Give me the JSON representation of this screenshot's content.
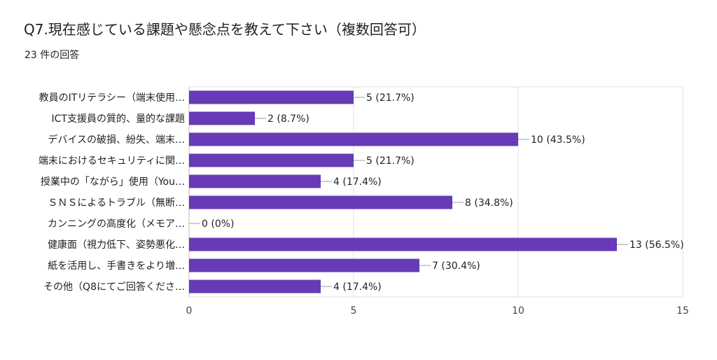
{
  "chart_data": {
    "type": "bar",
    "orientation": "horizontal",
    "title": "Q7.現在感じている課題や懸念点を教えて下さい（複数回答可）",
    "subtitle": "23 件の回答",
    "categories": [
      "教員のITリテラシー（端末使用…",
      "ICT支援員の質的、量的な課題",
      "デバイスの破損、紛失、端末…",
      "端末におけるセキュリティに関…",
      "授業中の「ながら」使用（You…",
      "ＳＮＳによるトラブル（無断…",
      "カンニングの高度化（メモア…",
      "健康面（視力低下、姿勢悪化…",
      "紙を活用し、手書きをより増…",
      "その他（Q8にてご回答くださ…"
    ],
    "values": [
      5,
      2,
      10,
      5,
      4,
      8,
      0,
      13,
      7,
      4
    ],
    "data_labels": [
      "5 (21.7%)",
      "2 (8.7%)",
      "10 (43.5%)",
      "5 (21.7%)",
      "4 (17.4%)",
      "8 (34.8%)",
      "0 (0%)",
      "13 (56.5%)",
      "7 (30.4%)",
      "4 (17.4%)"
    ],
    "xlim": [
      0,
      15
    ],
    "xticks": [
      "0",
      "5",
      "10",
      "15"
    ],
    "grid": true,
    "colors": {
      "bar": "#673ab7",
      "grid": "#e0e0e0",
      "text": "#202124",
      "leader": "#9e9e9e"
    }
  }
}
